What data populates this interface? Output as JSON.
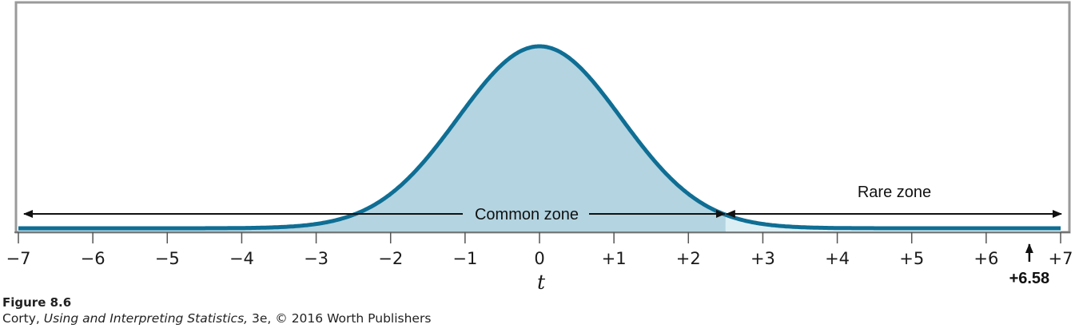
{
  "chart_data": {
    "type": "area",
    "distribution": "t",
    "xlabel": "t",
    "xlim": [
      -7,
      7
    ],
    "x_ticks": [
      -7,
      -6,
      -5,
      -4,
      -3,
      -2,
      -1,
      0,
      1,
      2,
      3,
      4,
      5,
      6,
      7
    ],
    "x_tick_labels": [
      "−7",
      "−6",
      "−5",
      "−4",
      "−3",
      "−2",
      "−1",
      "0",
      "+1",
      "+2",
      "+3",
      "+4",
      "+5",
      "+6",
      "+7"
    ],
    "critical_value": 2.5,
    "zones": [
      {
        "label": "Common zone",
        "x_range": [
          -7,
          2.5
        ]
      },
      {
        "label": "Rare zone",
        "x_range": [
          2.5,
          7
        ]
      }
    ],
    "marker": {
      "value": 6.58,
      "label": "+6.58"
    },
    "colors": {
      "curve": "#0f6e94",
      "common_fill": "#b3d4e0",
      "rare_fill": "#dbeef4",
      "frame": "#9a9a9a",
      "arrows": "#111111"
    }
  },
  "figure": {
    "title": "Figure 8.6",
    "credit_author": "Corty, ",
    "credit_book": "Using and Interpreting Statistics,",
    "credit_rest": " 3e, © 2016 Worth Publishers"
  }
}
